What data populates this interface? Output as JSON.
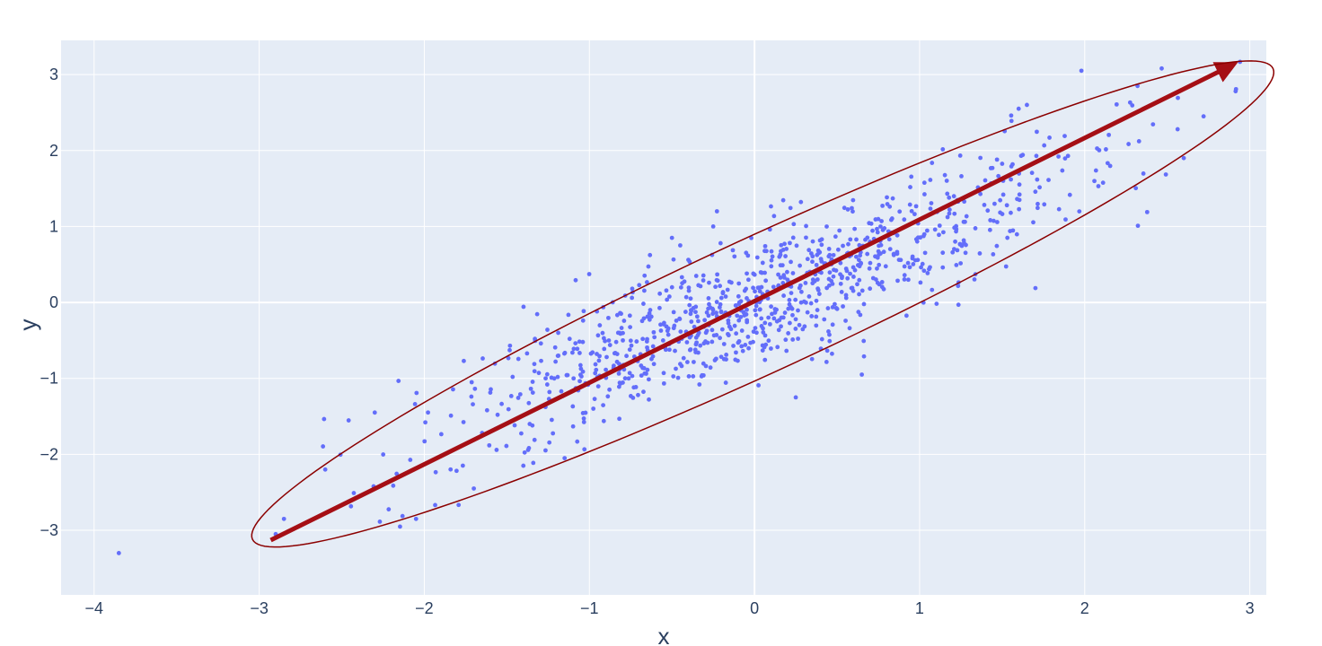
{
  "chart_data": {
    "type": "scatter",
    "title": "",
    "xlabel": "x",
    "ylabel": "y",
    "xlim": [
      -4.2,
      3.1
    ],
    "ylim": [
      -3.85,
      3.45
    ],
    "x_ticks": [
      -4,
      -3,
      -2,
      -1,
      0,
      1,
      2,
      3
    ],
    "y_ticks": [
      -3,
      -2,
      -1,
      0,
      1,
      2,
      3
    ],
    "x_tick_labels": [
      "−4",
      "−3",
      "−2",
      "−1",
      "0",
      "1",
      "2",
      "3"
    ],
    "y_tick_labels": [
      "−3",
      "−2",
      "−1",
      "0",
      "1",
      "2",
      "3"
    ],
    "grid": true,
    "colors": {
      "plot_bg": "#e5ecf6",
      "grid": "#ffffff",
      "points": "#636efa",
      "arrow": "#a50f15",
      "ellipse": "#8b0000",
      "text": "#2a3f5f"
    },
    "series": [
      {
        "type": "scatter",
        "n_points": 1000,
        "points_sample": [
          [
            -3.85,
            -3.3
          ],
          [
            -2.9,
            -3.05
          ],
          [
            -2.85,
            -2.85
          ],
          [
            -2.3,
            -1.45
          ],
          [
            -2.05,
            -2.85
          ],
          [
            -1.7,
            -2.45
          ],
          [
            0.65,
            -0.95
          ],
          [
            0.25,
            -1.25
          ],
          [
            1.65,
            2.6
          ],
          [
            1.6,
            2.55
          ],
          [
            1.98,
            3.05
          ],
          [
            2.32,
            2.85
          ],
          [
            2.6,
            1.9
          ],
          [
            2.72,
            2.45
          ],
          [
            -2.6,
            -2.2
          ],
          [
            -1.4,
            -2.15
          ],
          [
            -1.15,
            -2.05
          ],
          [
            -0.5,
            0.85
          ],
          [
            -0.25,
            1.0
          ]
        ]
      }
    ],
    "annotations": [
      {
        "type": "arrow",
        "from": [
          -2.93,
          -3.13
        ],
        "to": [
          2.87,
          3.13
        ]
      },
      {
        "type": "ellipse",
        "center": [
          0.05,
          -0.02
        ],
        "semi_major": 4.4,
        "semi_minor": 0.68,
        "angle_deg": 46
      }
    ]
  }
}
